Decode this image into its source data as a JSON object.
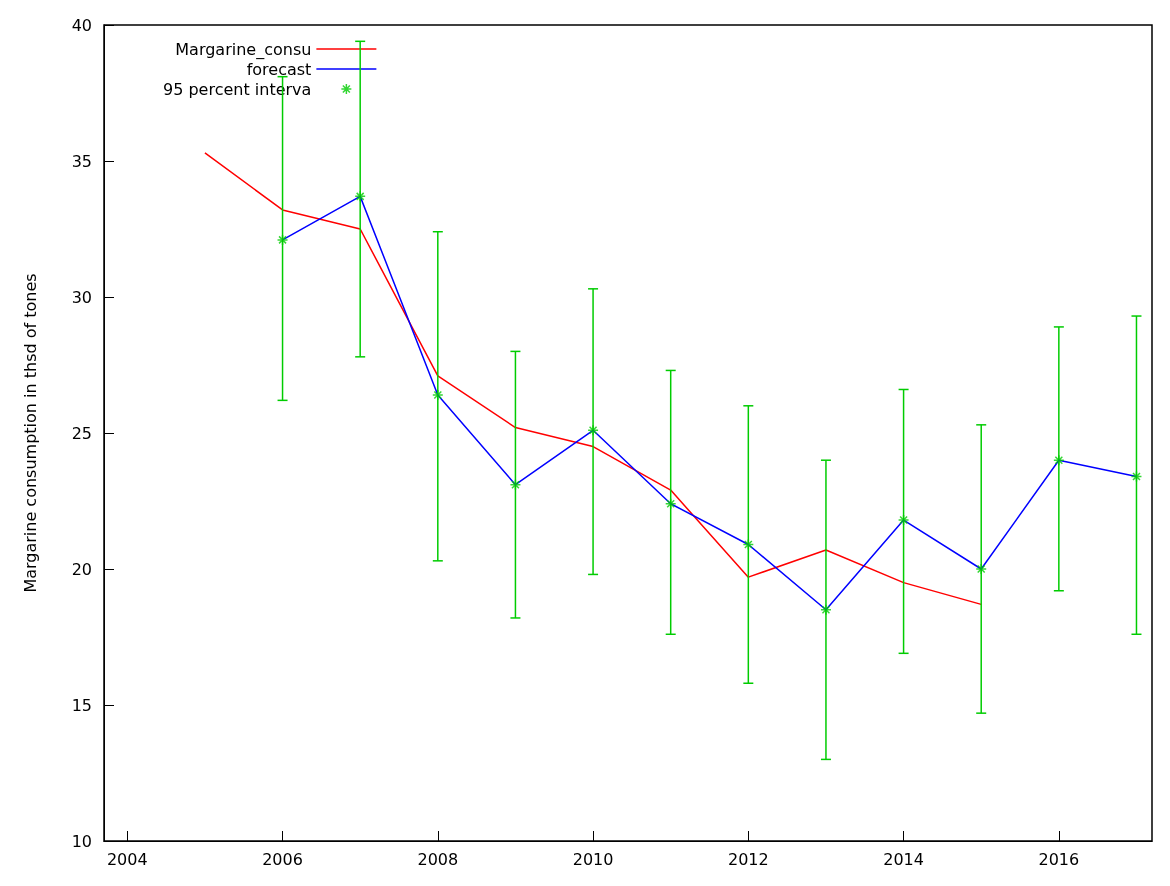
{
  "chart_data": {
    "type": "line",
    "ylabel": "Margarine consumption in thsd of tones",
    "xlim": [
      2003.7,
      2017.2
    ],
    "xticks": [
      2004,
      2006,
      2008,
      2010,
      2012,
      2014,
      2016
    ],
    "ylim": [
      10,
      40
    ],
    "yticks": [
      10,
      15,
      20,
      25,
      30,
      35,
      40
    ],
    "legend": "top left",
    "grid": false,
    "series": [
      {
        "name": "Margarine_consu",
        "color": "#ff0000",
        "x": [
          2005,
          2006,
          2007,
          2008,
          2009,
          2010,
          2011,
          2012,
          2013,
          2014,
          2015
        ],
        "values": [
          35.3,
          33.2,
          32.5,
          27.1,
          25.2,
          24.5,
          22.9,
          19.7,
          20.7,
          19.5,
          18.7
        ]
      },
      {
        "name": "forecast",
        "color": "#0000ff",
        "x": [
          2006,
          2007,
          2008,
          2009,
          2010,
          2011,
          2012,
          2013,
          2014,
          2015,
          2016,
          2017
        ],
        "values": [
          32.1,
          33.7,
          26.4,
          23.1,
          25.1,
          22.4,
          20.9,
          18.5,
          21.8,
          20.0,
          24.0,
          23.4
        ]
      },
      {
        "name": "95 percent interva",
        "type": "scatter",
        "marker": "cross",
        "color": "#00cc00",
        "x": [
          2006,
          2007,
          2008,
          2009,
          2010,
          2011,
          2012,
          2013,
          2014,
          2015,
          2016,
          2017
        ],
        "values": [
          32.1,
          33.7,
          26.4,
          23.1,
          25.1,
          22.4,
          20.9,
          18.5,
          21.8,
          20.0,
          24.0,
          23.4
        ],
        "errors": [
          [
            26.2,
            38.1
          ],
          [
            27.8,
            39.4
          ],
          [
            20.3,
            32.4
          ],
          [
            18.2,
            28.0
          ],
          [
            19.8,
            30.3
          ],
          [
            17.6,
            27.3
          ],
          [
            15.8,
            26.0
          ],
          [
            13.0,
            24.0
          ],
          [
            16.9,
            26.6
          ],
          [
            14.7,
            25.3
          ],
          [
            19.2,
            28.9
          ],
          [
            17.6,
            29.3
          ]
        ]
      }
    ]
  }
}
